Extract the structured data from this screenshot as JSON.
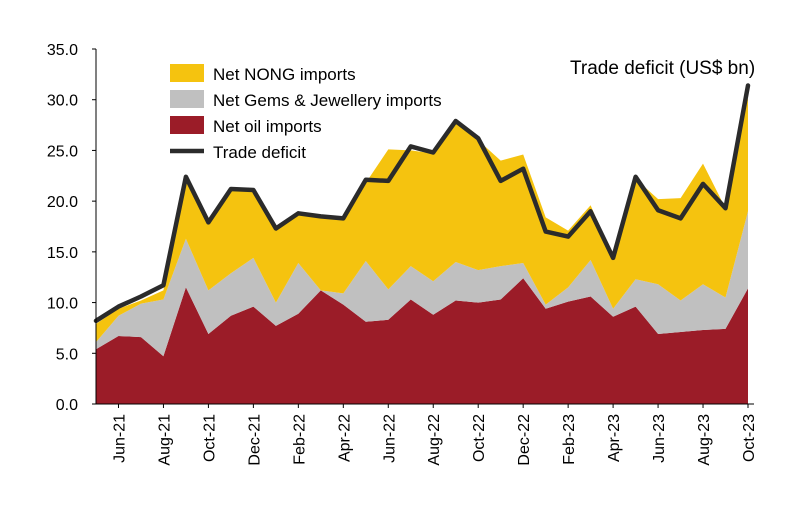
{
  "chart_data": {
    "type": "area",
    "x": [
      "May-21",
      "Jun-21",
      "Jul-21",
      "Aug-21",
      "Sep-21",
      "Oct-21",
      "Nov-21",
      "Dec-21",
      "Jan-22",
      "Feb-22",
      "Mar-22",
      "Apr-22",
      "May-22",
      "Jun-22",
      "Jul-22",
      "Aug-22",
      "Sep-22",
      "Oct-22",
      "Nov-22",
      "Dec-22",
      "Jan-23",
      "Feb-23",
      "Mar-23",
      "Apr-23",
      "May-23",
      "Jun-23",
      "Jul-23",
      "Aug-23",
      "Sep-23",
      "Oct-23"
    ],
    "x_tick_labels": [
      "Jun-21",
      "Aug-21",
      "Oct-21",
      "Dec-21",
      "Feb-22",
      "Apr-22",
      "Jun-22",
      "Aug-22",
      "Oct-22",
      "Dec-22",
      "Feb-23",
      "Apr-23",
      "Jun-23",
      "Aug-23",
      "Oct-23"
    ],
    "ylim": [
      0,
      35
    ],
    "y_ticks": [
      "0.0",
      "5.0",
      "10.0",
      "15.0",
      "20.0",
      "25.0",
      "30.0",
      "35.0"
    ],
    "stacked": true,
    "series": [
      {
        "name": "Net oil imports",
        "color": "#9b1c28",
        "values": [
          5.4,
          6.7,
          6.6,
          4.7,
          11.5,
          6.9,
          8.7,
          9.6,
          7.7,
          8.9,
          11.2,
          9.8,
          8.1,
          8.3,
          10.3,
          8.8,
          10.2,
          10.0,
          10.3,
          12.4,
          9.4,
          10.1,
          10.6,
          8.6,
          9.6,
          6.9,
          7.1,
          7.3,
          7.4,
          11.4
        ]
      },
      {
        "name": "Net Gems & Jewellery imports",
        "color": "#c0c0c0",
        "values": [
          0.7,
          2.0,
          3.3,
          5.6,
          4.8,
          4.3,
          4.2,
          4.8,
          2.3,
          5.0,
          0.0,
          1.1,
          6.0,
          3.0,
          3.3,
          3.3,
          3.8,
          3.2,
          3.3,
          1.5,
          0.4,
          1.4,
          3.6,
          0.8,
          2.7,
          4.9,
          3.1,
          4.5,
          3.1,
          7.6
        ]
      },
      {
        "name": "Net NONG imports",
        "color": "#f5c30f",
        "values": [
          1.8,
          0.7,
          0.3,
          0.9,
          6.1,
          6.6,
          8.3,
          6.8,
          7.5,
          4.8,
          7.3,
          7.4,
          7.7,
          13.8,
          11.4,
          12.6,
          13.8,
          12.8,
          10.4,
          10.7,
          8.6,
          5.6,
          5.4,
          5.0,
          9.9,
          8.4,
          10.1,
          11.9,
          8.8,
          11.2
        ]
      }
    ],
    "line": {
      "name": "Trade deficit",
      "color": "#2b2b2b",
      "values": [
        8.2,
        9.6,
        10.6,
        11.7,
        22.4,
        17.9,
        21.2,
        21.1,
        17.3,
        18.8,
        18.5,
        18.3,
        22.1,
        22.0,
        25.4,
        24.8,
        27.9,
        26.2,
        22.0,
        23.2,
        17.0,
        16.5,
        19.0,
        14.4,
        22.4,
        19.1,
        18.3,
        21.7,
        19.3,
        31.4
      ]
    },
    "legend": [
      "Net NONG imports",
      "Net Gems & Jewellery imports",
      "Net oil imports",
      "Trade deficit"
    ],
    "legend_position": "top-left",
    "annotation": "Trade deficit (US$ bn)",
    "title": "",
    "xlabel": "",
    "ylabel": "",
    "grid": false
  }
}
